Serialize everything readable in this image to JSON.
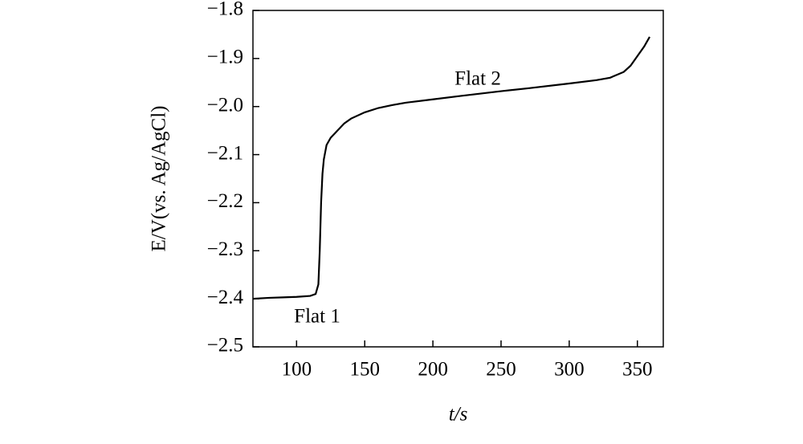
{
  "chart_data": {
    "type": "line",
    "xlabel": "t/s",
    "ylabel": "E/V(vs. Ag/AgCl)",
    "annotations": [
      "Flat 1",
      "Flat 2"
    ],
    "x": [
      68,
      80,
      90,
      100,
      110,
      114,
      116,
      117,
      118,
      119,
      120,
      122,
      125,
      130,
      135,
      140,
      150,
      160,
      170,
      180,
      200,
      220,
      250,
      270,
      300,
      320,
      330,
      340,
      345,
      350,
      355,
      359
    ],
    "series": [
      {
        "name": "E",
        "color": "#000000",
        "values": [
          -2.4,
          -2.398,
          -2.397,
          -2.396,
          -2.394,
          -2.39,
          -2.37,
          -2.3,
          -2.2,
          -2.14,
          -2.11,
          -2.08,
          -2.065,
          -2.05,
          -2.035,
          -2.025,
          -2.012,
          -2.003,
          -1.997,
          -1.992,
          -1.985,
          -1.978,
          -1.968,
          -1.962,
          -1.952,
          -1.945,
          -1.94,
          -1.928,
          -1.915,
          -1.895,
          -1.875,
          -1.855
        ]
      }
    ],
    "xlim": [
      68,
      369
    ],
    "xticks": [
      100,
      150,
      200,
      250,
      300,
      350
    ],
    "ylim": [
      -2.5,
      -1.8
    ],
    "yticks": [
      {
        "value": -1.8,
        "label": "−1.8"
      },
      {
        "value": -1.9,
        "label": "−1.9"
      },
      {
        "value": -2.0,
        "label": "−2.0"
      },
      {
        "value": -2.1,
        "label": "−2.1"
      },
      {
        "value": -2.2,
        "label": "−2.2"
      },
      {
        "value": -2.3,
        "label": "−2.3"
      },
      {
        "value": -2.4,
        "label": "−2.4"
      },
      {
        "value": -2.5,
        "label": "−2.5"
      }
    ]
  }
}
